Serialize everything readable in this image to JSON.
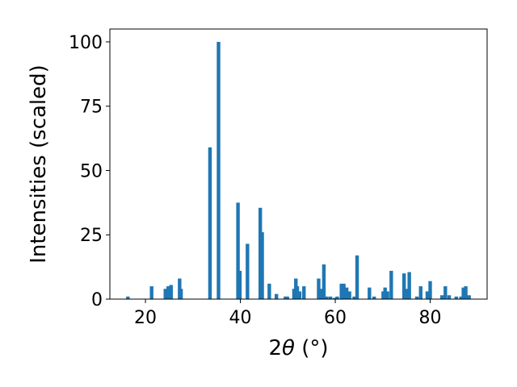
{
  "chart_data": {
    "type": "bar",
    "title": "",
    "xlabel": "2θ (°)",
    "xlabel_parts": {
      "prefix": "2",
      "symbol": "θ",
      "suffix": " (°)"
    },
    "ylabel": "Intensities (scaled)",
    "xlim": [
      12.5,
      92
    ],
    "ylim": [
      0,
      105
    ],
    "xticks": [
      20,
      40,
      60,
      80
    ],
    "yticks": [
      0,
      25,
      50,
      75,
      100
    ],
    "bar_color": "#1f77b4",
    "grid": false,
    "legend": "none",
    "x": [
      16.3,
      21.3,
      24.2,
      24.8,
      25.4,
      27.2,
      27.5,
      33.6,
      35.4,
      39.5,
      39.9,
      41.5,
      44.2,
      44.6,
      46.1,
      47.6,
      49.5,
      49.9,
      51.3,
      51.7,
      52.0,
      52.5,
      53.4,
      56.5,
      57.0,
      57.6,
      58.2,
      59.0,
      59.9,
      60.4,
      61.3,
      61.8,
      62.4,
      63.0,
      64.0,
      64.6,
      67.2,
      68.2,
      70.1,
      70.5,
      71.0,
      71.8,
      74.5,
      75.0,
      75.6,
      77.2,
      78.0,
      79.4,
      80.0,
      82.5,
      83.2,
      84.0,
      85.5,
      86.5,
      87.0,
      87.5,
      88.2
    ],
    "values": [
      1,
      5,
      4,
      5,
      5.5,
      8,
      4,
      59,
      100,
      37.5,
      11,
      21.5,
      35.5,
      26,
      6,
      2,
      1,
      1,
      4,
      8,
      5,
      3,
      5,
      8,
      4,
      13.5,
      1,
      1,
      0.5,
      1,
      6,
      6,
      4.5,
      3,
      1,
      17,
      4.5,
      1,
      3,
      4.5,
      3,
      11,
      10,
      4,
      10.5,
      1,
      5,
      3,
      7,
      1.5,
      5,
      1.5,
      1,
      1,
      4.5,
      5,
      1.5
    ]
  }
}
